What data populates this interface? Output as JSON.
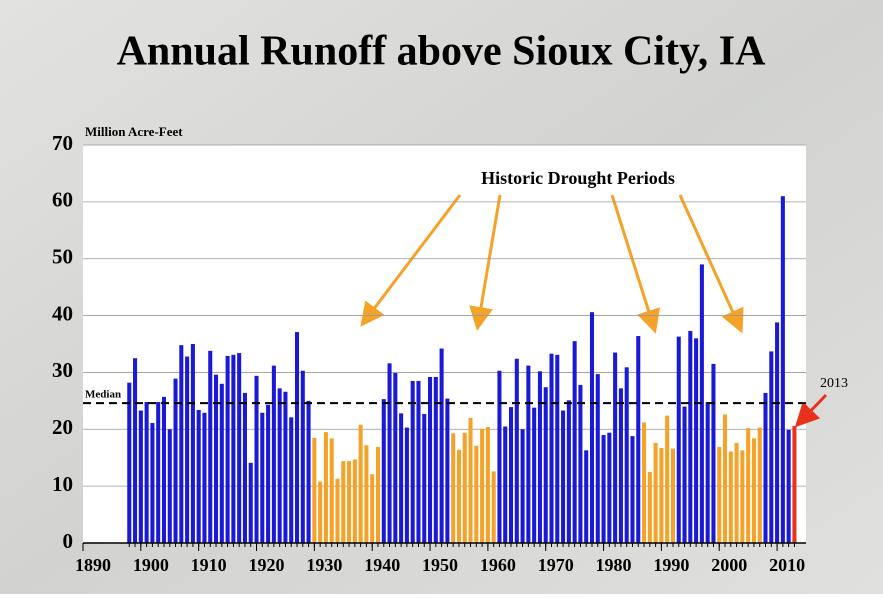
{
  "chart_data": {
    "type": "bar",
    "title": "Annual Runoff above Sioux City, IA",
    "y_label": "Million Acre-Feet",
    "x": [
      1898,
      1899,
      1900,
      1901,
      1902,
      1903,
      1904,
      1905,
      1906,
      1907,
      1908,
      1909,
      1910,
      1911,
      1912,
      1913,
      1914,
      1915,
      1916,
      1917,
      1918,
      1919,
      1920,
      1921,
      1922,
      1923,
      1924,
      1925,
      1926,
      1927,
      1928,
      1929,
      1930,
      1931,
      1932,
      1933,
      1934,
      1935,
      1936,
      1937,
      1938,
      1939,
      1940,
      1941,
      1942,
      1943,
      1944,
      1945,
      1946,
      1947,
      1948,
      1949,
      1950,
      1951,
      1952,
      1953,
      1954,
      1955,
      1956,
      1957,
      1958,
      1959,
      1960,
      1961,
      1962,
      1963,
      1964,
      1965,
      1966,
      1967,
      1968,
      1969,
      1970,
      1971,
      1972,
      1973,
      1974,
      1975,
      1976,
      1977,
      1978,
      1979,
      1980,
      1981,
      1982,
      1983,
      1984,
      1985,
      1986,
      1987,
      1988,
      1989,
      1990,
      1991,
      1992,
      1993,
      1994,
      1995,
      1996,
      1997,
      1998,
      1999,
      2000,
      2001,
      2002,
      2003,
      2004,
      2005,
      2006,
      2007,
      2008,
      2009,
      2010,
      2011,
      2012,
      2013
    ],
    "values": [
      28.2,
      32.5,
      23.3,
      24.8,
      21.1,
      24.8,
      25.7,
      20.0,
      28.9,
      34.8,
      32.8,
      35.0,
      23.4,
      22.9,
      33.8,
      29.6,
      28.0,
      32.9,
      33.1,
      33.4,
      26.4,
      14.1,
      29.4,
      22.9,
      24.3,
      31.2,
      27.2,
      26.6,
      22.1,
      37.1,
      30.3,
      25.0,
      18.5,
      10.8,
      19.5,
      18.4,
      11.3,
      14.4,
      14.4,
      14.7,
      20.8,
      17.2,
      12.1,
      16.9,
      25.3,
      31.6,
      29.9,
      22.8,
      20.3,
      28.5,
      28.5,
      22.7,
      29.2,
      29.2,
      34.2,
      25.4,
      19.3,
      16.4,
      19.4,
      22.0,
      17.1,
      20.1,
      20.4,
      12.6,
      30.3,
      20.5,
      23.9,
      32.4,
      20.0,
      31.2,
      23.8,
      30.2,
      27.4,
      33.3,
      33.1,
      23.3,
      25.1,
      35.5,
      27.8,
      16.3,
      40.6,
      29.7,
      19.0,
      19.4,
      33.5,
      27.2,
      30.9,
      18.8,
      36.4,
      21.2,
      12.5,
      17.6,
      16.7,
      22.4,
      16.6,
      36.3,
      24.0,
      37.3,
      36.0,
      49.0,
      24.8,
      31.5,
      16.9,
      22.6,
      16.1,
      17.6,
      16.3,
      20.2,
      18.4,
      20.3,
      26.4,
      33.7,
      38.8,
      61.0,
      19.9,
      20.6
    ],
    "colors": [
      "#1a1ad6",
      "#1a1ad6",
      "#1a1ad6",
      "#1a1ad6",
      "#1a1ad6",
      "#1a1ad6",
      "#1a1ad6",
      "#1a1ad6",
      "#1a1ad6",
      "#1a1ad6",
      "#1a1ad6",
      "#1a1ad6",
      "#1a1ad6",
      "#1a1ad6",
      "#1a1ad6",
      "#1a1ad6",
      "#1a1ad6",
      "#1a1ad6",
      "#1a1ad6",
      "#1a1ad6",
      "#1a1ad6",
      "#1a1ad6",
      "#1a1ad6",
      "#1a1ad6",
      "#1a1ad6",
      "#1a1ad6",
      "#1a1ad6",
      "#1a1ad6",
      "#1a1ad6",
      "#1a1ad6",
      "#1a1ad6",
      "#1a1ad6",
      "#f5a228",
      "#f5a228",
      "#f5a228",
      "#f5a228",
      "#f5a228",
      "#f5a228",
      "#f5a228",
      "#f5a228",
      "#f5a228",
      "#f5a228",
      "#f5a228",
      "#f5a228",
      "#1a1ad6",
      "#1a1ad6",
      "#1a1ad6",
      "#1a1ad6",
      "#1a1ad6",
      "#1a1ad6",
      "#1a1ad6",
      "#1a1ad6",
      "#1a1ad6",
      "#1a1ad6",
      "#1a1ad6",
      "#1a1ad6",
      "#f5a228",
      "#f5a228",
      "#f5a228",
      "#f5a228",
      "#f5a228",
      "#f5a228",
      "#f5a228",
      "#f5a228",
      "#1a1ad6",
      "#1a1ad6",
      "#1a1ad6",
      "#1a1ad6",
      "#1a1ad6",
      "#1a1ad6",
      "#1a1ad6",
      "#1a1ad6",
      "#1a1ad6",
      "#1a1ad6",
      "#1a1ad6",
      "#1a1ad6",
      "#1a1ad6",
      "#1a1ad6",
      "#1a1ad6",
      "#1a1ad6",
      "#1a1ad6",
      "#1a1ad6",
      "#1a1ad6",
      "#1a1ad6",
      "#1a1ad6",
      "#1a1ad6",
      "#1a1ad6",
      "#1a1ad6",
      "#1a1ad6",
      "#f5a228",
      "#f5a228",
      "#f5a228",
      "#f5a228",
      "#f5a228",
      "#f5a228",
      "#1a1ad6",
      "#1a1ad6",
      "#1a1ad6",
      "#1a1ad6",
      "#1a1ad6",
      "#1a1ad6",
      "#1a1ad6",
      "#f5a228",
      "#f5a228",
      "#f5a228",
      "#f5a228",
      "#f5a228",
      "#f5a228",
      "#f5a228",
      "#f5a228",
      "#1a1ad6",
      "#1a1ad6",
      "#1a1ad6",
      "#1a1ad6",
      "#1a1ad6",
      "#e8321e"
    ],
    "xlim": [
      1890,
      2015
    ],
    "xticks": [
      1890,
      1900,
      1910,
      1920,
      1930,
      1940,
      1950,
      1960,
      1970,
      1980,
      1990,
      2000,
      2010
    ],
    "ylim": [
      0,
      70
    ],
    "yticks": [
      0,
      10,
      20,
      30,
      40,
      50,
      60,
      70
    ],
    "grid": true,
    "median": {
      "label": "Median",
      "value": 24.6
    },
    "annotations": {
      "drought": "Historic Drought Periods",
      "last_year": "2013"
    }
  }
}
